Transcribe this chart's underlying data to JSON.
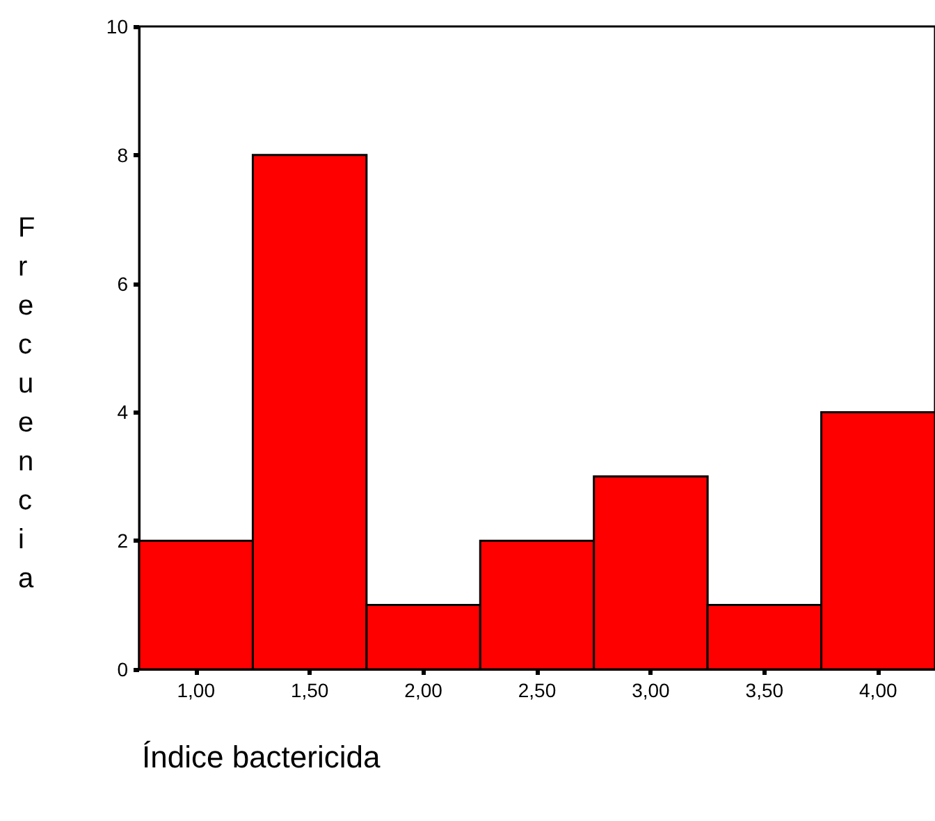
{
  "chart_data": {
    "type": "histogram",
    "xlabel": "Índice bactericida",
    "ylabel": "Frecuencia",
    "bins": [
      0.75,
      1.25,
      1.75,
      2.25,
      2.75,
      3.25,
      3.75,
      4.25
    ],
    "values": [
      2,
      8,
      1,
      2,
      3,
      1,
      4
    ],
    "color": "#ff0000",
    "xlim": [
      0.75,
      4.25
    ],
    "xticks": [
      {
        "value": 1,
        "label": "1,00"
      },
      {
        "value": 1.5,
        "label": "1,50"
      },
      {
        "value": 2,
        "label": "2,00"
      },
      {
        "value": 2.5,
        "label": "2,50"
      },
      {
        "value": 3,
        "label": "3,00"
      },
      {
        "value": 3.5,
        "label": "3,50"
      },
      {
        "value": 4,
        "label": "4,00"
      }
    ],
    "ylim": [
      0,
      10
    ],
    "yticks": [
      0,
      2,
      4,
      6,
      8,
      10
    ],
    "grid": false
  }
}
